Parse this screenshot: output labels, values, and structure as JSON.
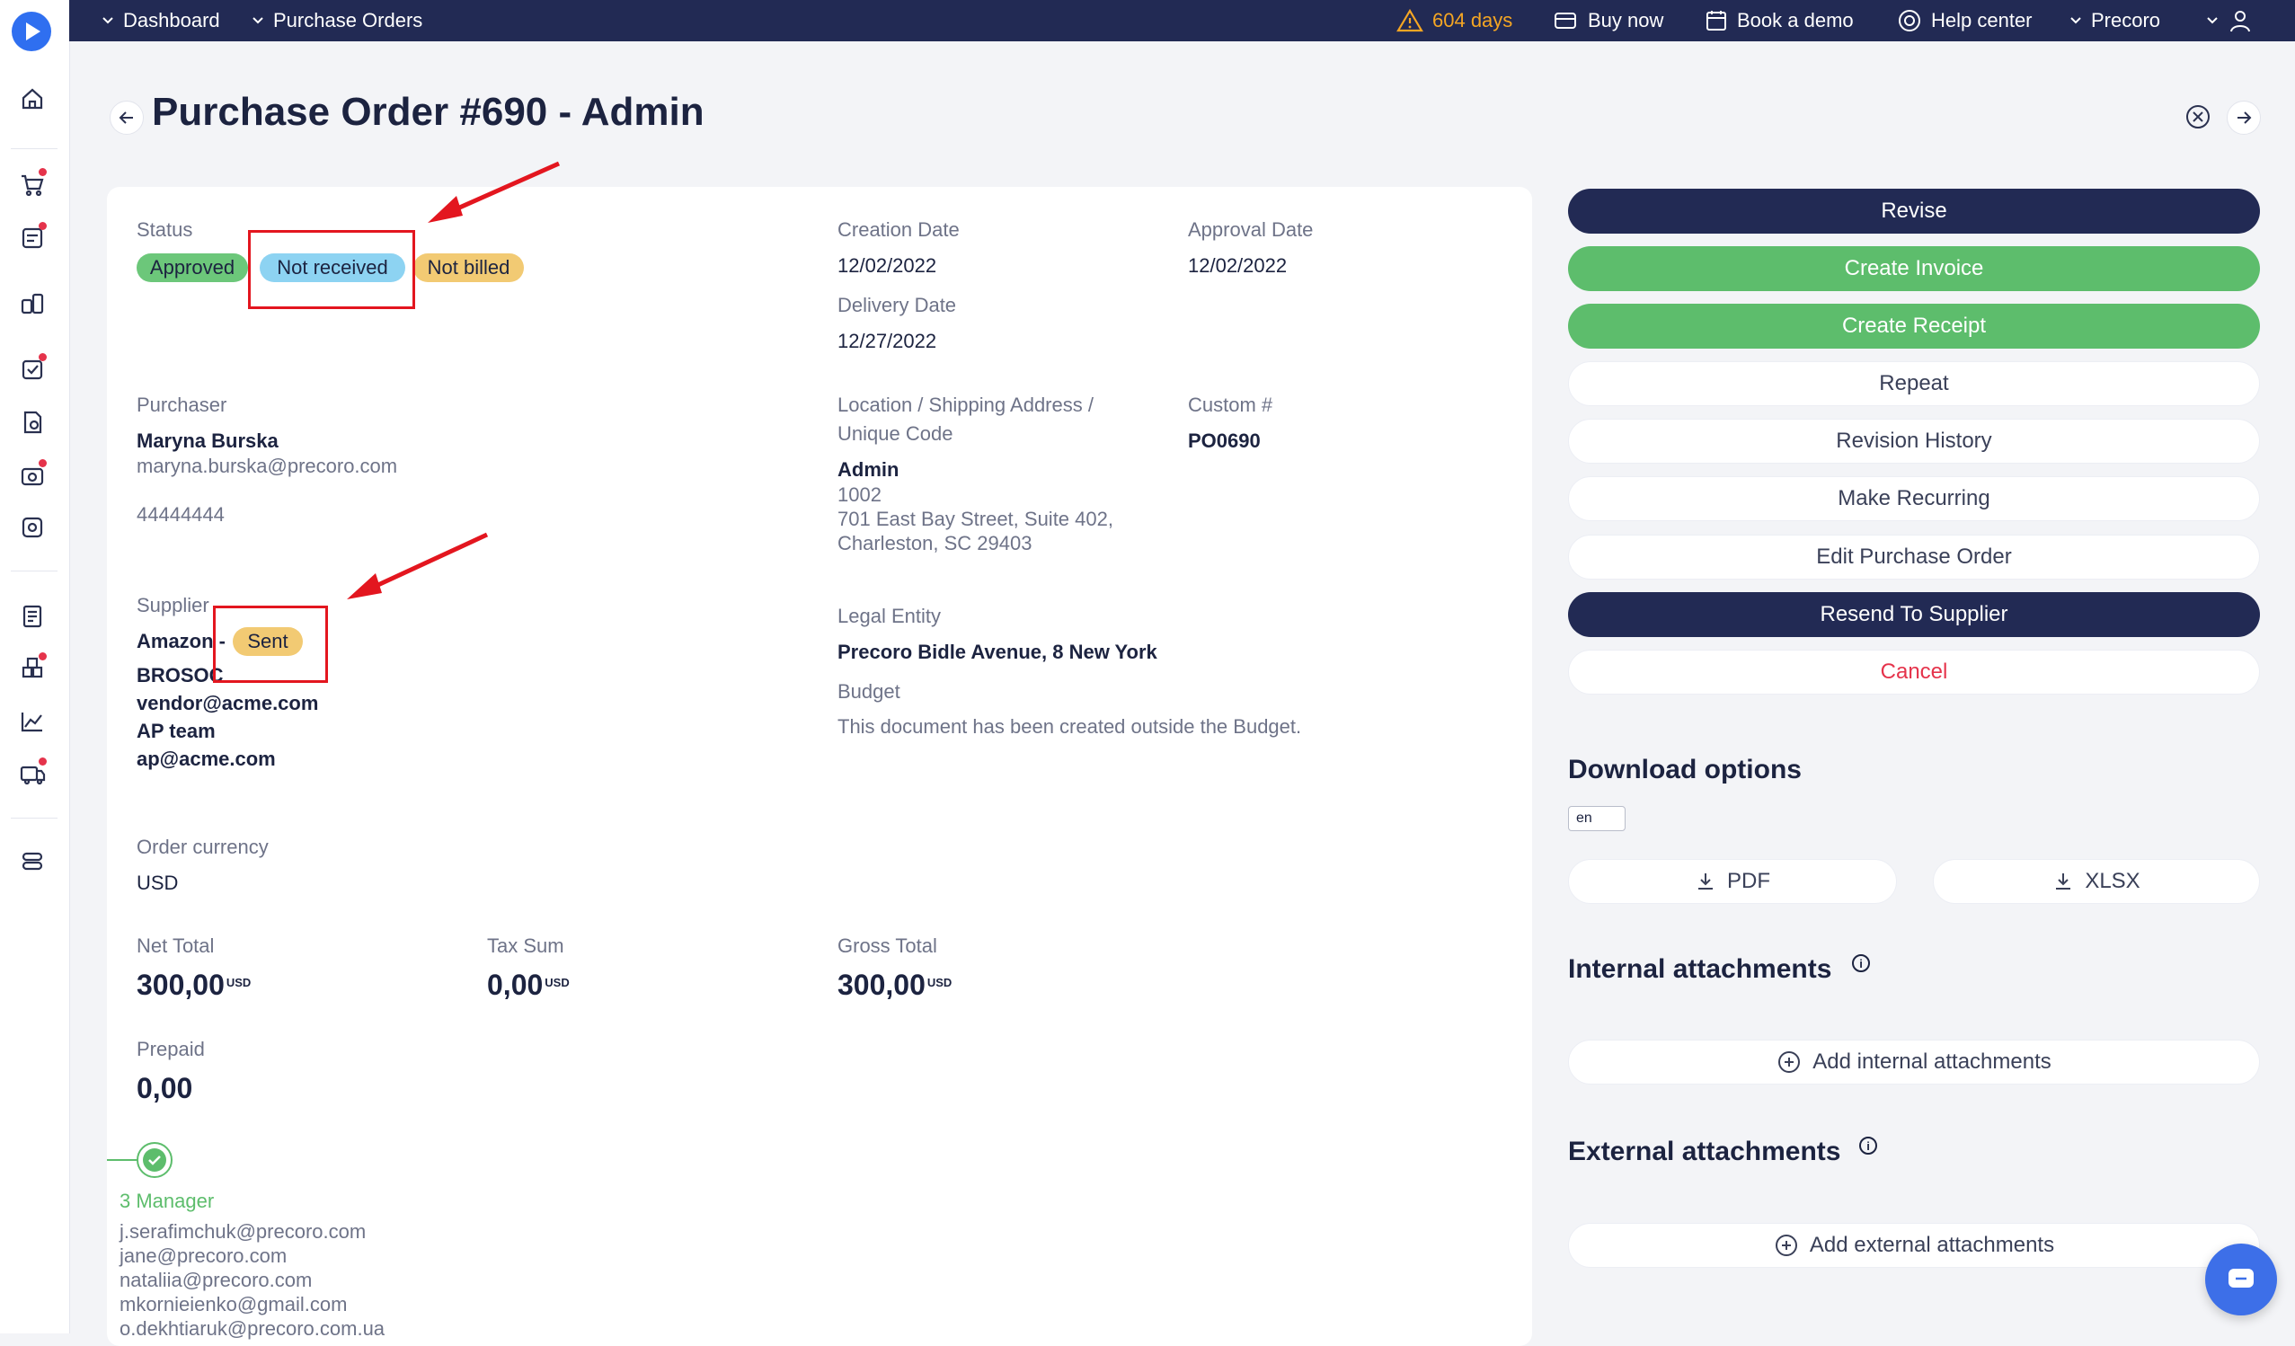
{
  "topbar": {
    "nav": [
      {
        "label": "Dashboard",
        "icon": "chevron-down-icon"
      },
      {
        "label": "Purchase Orders",
        "icon": "chevron-down-icon"
      }
    ],
    "trial_warning": "604 days",
    "buy_now": "Buy now",
    "book_demo": "Book a demo",
    "help_center": "Help center",
    "company": "Precoro",
    "colors": {
      "bar": "#222a54",
      "warning": "#f5a623"
    }
  },
  "sidebar": {
    "icons": [
      "precoro-logo-icon",
      "home-icon",
      "cart-icon",
      "requisition-icon",
      "suppliers-icon",
      "approvals-icon",
      "documents-icon",
      "receipts-icon",
      "invoices-icon",
      "budget-icon",
      "warehouse-icon",
      "analytics-icon",
      "delivery-icon",
      "settings-icon"
    ]
  },
  "page": {
    "title": "Purchase Order #690 - Admin"
  },
  "details": {
    "status_label": "Status",
    "statuses": {
      "approved": "Approved",
      "not_received": "Not received",
      "not_billed": "Not billed"
    },
    "creation_date_label": "Creation Date",
    "creation_date": "12/02/2022",
    "approval_date_label": "Approval Date",
    "approval_date": "12/02/2022",
    "delivery_date_label": "Delivery Date",
    "delivery_date": "12/27/2022",
    "purchaser_label": "Purchaser",
    "purchaser_name": "Maryna Burska",
    "purchaser_email": "maryna.burska@precoro.com",
    "purchaser_phone": "44444444",
    "location_label_1": "Location / Shipping Address /",
    "location_label_2": "Unique Code",
    "location_name": "Admin",
    "location_code": "1002",
    "location_address_1": "701 East Bay Street, Suite 402,",
    "location_address_2": "Charleston, SC 29403",
    "custom_label": "Custom #",
    "custom_value": "PO0690",
    "supplier_label": "Supplier",
    "supplier_name": "Amazon -",
    "supplier_status": "Sent",
    "supplier_code": "BROSOC",
    "supplier_email": "vendor@acme.com",
    "supplier_team": "AP team",
    "supplier_team_email": "ap@acme.com",
    "legal_entity_label": "Legal Entity",
    "legal_entity": "Precoro Bidle Avenue, 8 New York",
    "budget_label": "Budget",
    "budget_note": "This document has been created outside the Budget.",
    "currency_label": "Order currency",
    "currency": "USD",
    "net_total_label": "Net Total",
    "net_total": "300,00",
    "tax_sum_label": "Tax Sum",
    "tax_sum": "0,00",
    "gross_total_label": "Gross Total",
    "gross_total": "300,00",
    "currency_suffix": "USD",
    "prepaid_label": "Prepaid",
    "prepaid": "0,00",
    "approval_step": "3 Manager",
    "approvers": [
      "j.serafimchuk@precoro.com",
      "jane@precoro.com",
      "nataliia@precoro.com",
      "mkornieienko@gmail.com",
      "o.dekhtiaruk@precoro.com.ua"
    ],
    "colors": {
      "approved": "#6cc77a",
      "not_received": "#8dd3f2",
      "not_billed": "#f2ca73",
      "sent": "#f2ca73",
      "annotation": "#e3161f"
    }
  },
  "actions": {
    "revise": "Revise",
    "create_invoice": "Create Invoice",
    "create_receipt": "Create Receipt",
    "repeat": "Repeat",
    "revision_history": "Revision History",
    "make_recurring": "Make Recurring",
    "edit": "Edit Purchase Order",
    "resend": "Resend To Supplier",
    "cancel": "Cancel",
    "colors": {
      "dark": "#222a54",
      "green": "#5dbd6c",
      "danger": "#e5334b"
    }
  },
  "download": {
    "title": "Download options",
    "language": "en",
    "pdf": "PDF",
    "xlsx": "XLSX"
  },
  "internal_attachments": {
    "title": "Internal attachments",
    "add": "Add internal attachments"
  },
  "external_attachments": {
    "title": "External attachments",
    "add": "Add external attachments"
  }
}
